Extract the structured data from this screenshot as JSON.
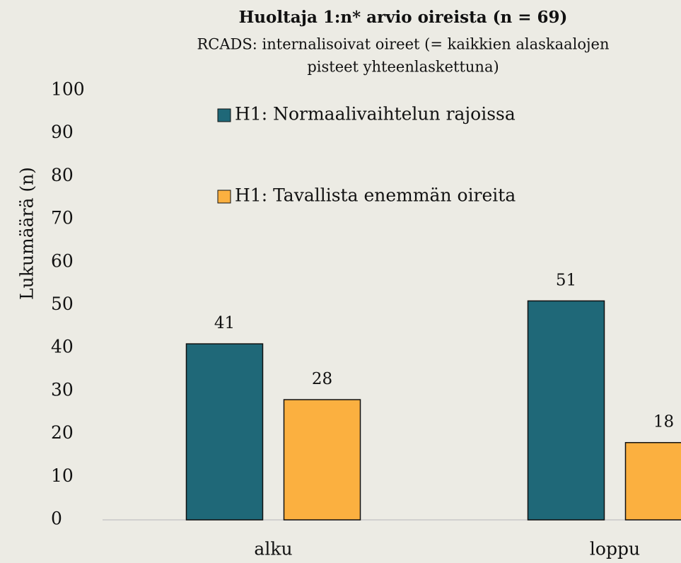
{
  "chart_data": {
    "type": "bar",
    "title": "Huoltaja 1:n* arvio oireista (n = 69)",
    "subtitle": [
      "RCADS: internalisoivat oireet (= kaikkien alaskaalojen",
      "pisteet yhteenlaskettuna)"
    ],
    "y_label": "Lukumäärä (n)",
    "categories": [
      "alku",
      "loppu"
    ],
    "series": [
      {
        "name": "H1: Normaalivaihtelun rajoissa",
        "color": "#1f6878",
        "values": [
          41,
          51
        ]
      },
      {
        "name": "H1: Tavallista enemmän oireita",
        "color": "#fbb040",
        "values": [
          28,
          18
        ]
      }
    ],
    "ylim": [
      0,
      100
    ],
    "yticks": [
      0,
      10,
      20,
      30,
      40,
      50,
      60,
      70,
      80,
      90,
      100
    ],
    "grid": false,
    "legend": "top"
  }
}
